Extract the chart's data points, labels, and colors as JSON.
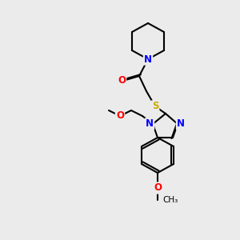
{
  "bg_color": "#ebebeb",
  "bond_color": "#000000",
  "bond_lw": 1.5,
  "atom_colors": {
    "N": "#0000ff",
    "O": "#ff0000",
    "S": "#ccaa00",
    "C": "#000000"
  },
  "font_size": 8.5
}
